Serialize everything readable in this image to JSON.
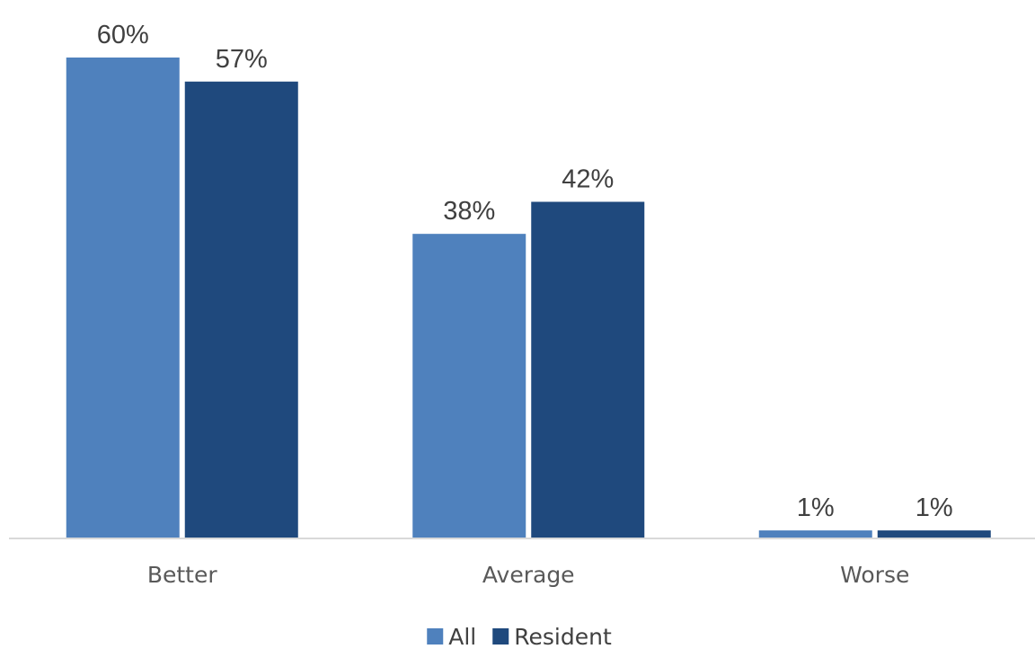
{
  "chart_data": {
    "type": "bar",
    "categories": [
      "Better",
      "Average",
      "Worse"
    ],
    "series": [
      {
        "name": "All",
        "values": [
          60,
          38,
          1
        ],
        "labels": [
          "60%",
          "38%",
          "1%"
        ],
        "color": "#4F81BD"
      },
      {
        "name": "Resident",
        "values": [
          57,
          42,
          1
        ],
        "labels": [
          "57%",
          "42%",
          "1%"
        ],
        "color": "#1F497D"
      }
    ],
    "ylim": [
      0,
      60
    ],
    "grid": false,
    "legend": "bottom-center",
    "title": "",
    "xlabel": "",
    "ylabel": ""
  }
}
